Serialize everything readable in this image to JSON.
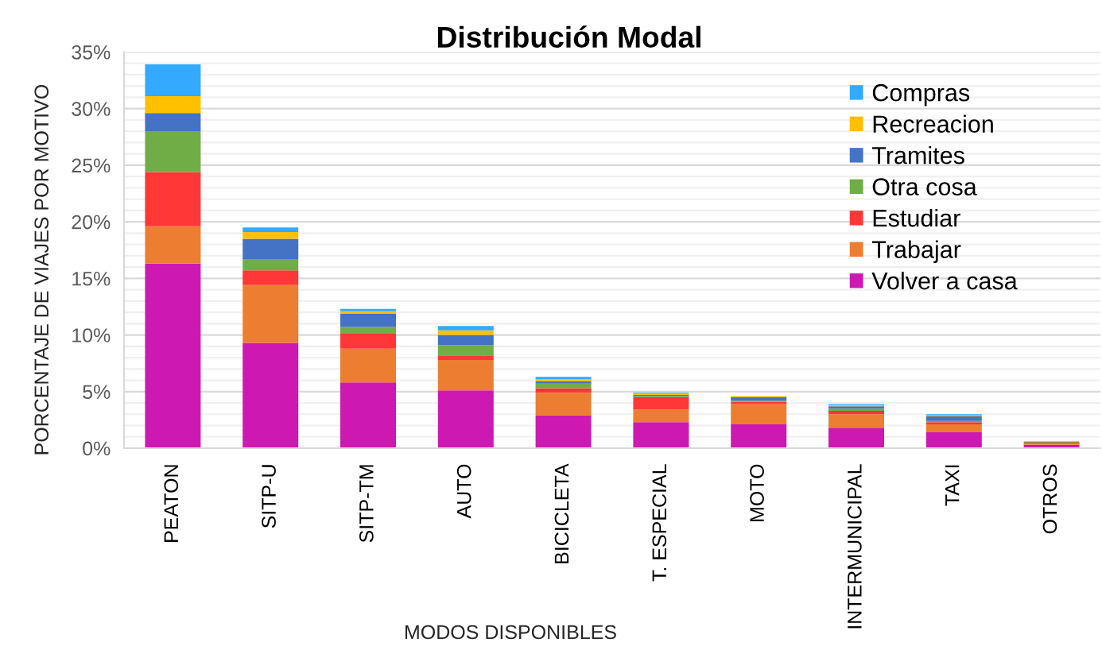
{
  "chart_data": {
    "type": "bar",
    "title": "Distribución Modal",
    "xlabel": "MODOS DISPONIBLES",
    "ylabel": "PORCENTAJE DE VIAJES POR MOTIVO",
    "categories": [
      "PEATON",
      "SITP-U",
      "SITP-TM",
      "AUTO",
      "BICICLETA",
      "T. ESPECIAL",
      "MOTO",
      "INTERMUNICIPAL",
      "TAXI",
      "OTROS"
    ],
    "stacked": true,
    "series": [
      {
        "name": "Volver a casa",
        "color": "#cd19b1",
        "values": [
          16.3,
          9.3,
          5.8,
          5.1,
          2.9,
          2.3,
          2.1,
          1.8,
          1.4,
          0.3
        ]
      },
      {
        "name": "Trabajar",
        "color": "#ed7d31",
        "values": [
          3.3,
          5.1,
          3.0,
          2.7,
          2.0,
          1.1,
          1.8,
          1.2,
          0.7,
          0.1
        ]
      },
      {
        "name": "Estudiar",
        "color": "#ff3737",
        "values": [
          4.8,
          1.3,
          1.3,
          0.4,
          0.4,
          1.1,
          0.2,
          0.3,
          0.2,
          0.1
        ]
      },
      {
        "name": "Otra cosa",
        "color": "#70ad47",
        "values": [
          3.6,
          1.0,
          0.6,
          0.9,
          0.4,
          0.1,
          0.1,
          0.2,
          0.1,
          0.1
        ]
      },
      {
        "name": "Tramites",
        "color": "#4472c4",
        "values": [
          1.6,
          1.8,
          1.2,
          0.9,
          0.2,
          0.1,
          0.3,
          0.2,
          0.4,
          0.0
        ]
      },
      {
        "name": "Recreacion",
        "color": "#ffc000",
        "values": [
          1.5,
          0.6,
          0.2,
          0.4,
          0.2,
          0.1,
          0.1,
          0.1,
          0.1,
          0.0
        ]
      },
      {
        "name": "Compras",
        "color": "#33aaff",
        "values": [
          2.8,
          0.4,
          0.2,
          0.4,
          0.2,
          0.1,
          0.0,
          0.1,
          0.1,
          0.0
        ]
      }
    ],
    "ylim": [
      0,
      35
    ],
    "yticks": [
      {
        "value": 0,
        "label": "0%"
      },
      {
        "value": 1,
        "label": null
      },
      {
        "value": 2,
        "label": null
      },
      {
        "value": 3,
        "label": null
      },
      {
        "value": 4,
        "label": null
      },
      {
        "value": 5,
        "label": "5%"
      },
      {
        "value": 6,
        "label": null
      },
      {
        "value": 7,
        "label": null
      },
      {
        "value": 8,
        "label": null
      },
      {
        "value": 9,
        "label": null
      },
      {
        "value": 10,
        "label": "10%"
      },
      {
        "value": 11,
        "label": null
      },
      {
        "value": 12,
        "label": null
      },
      {
        "value": 13,
        "label": null
      },
      {
        "value": 14,
        "label": null
      },
      {
        "value": 15,
        "label": "15%"
      },
      {
        "value": 16,
        "label": null
      },
      {
        "value": 17,
        "label": null
      },
      {
        "value": 18,
        "label": null
      },
      {
        "value": 19,
        "label": null
      },
      {
        "value": 20,
        "label": "20%"
      },
      {
        "value": 21,
        "label": null
      },
      {
        "value": 22,
        "label": null
      },
      {
        "value": 23,
        "label": null
      },
      {
        "value": 24,
        "label": null
      },
      {
        "value": 25,
        "label": "25%"
      },
      {
        "value": 26,
        "label": null
      },
      {
        "value": 27,
        "label": null
      },
      {
        "value": 28,
        "label": null
      },
      {
        "value": 29,
        "label": null
      },
      {
        "value": 30,
        "label": "30%"
      },
      {
        "value": 31,
        "label": null
      },
      {
        "value": 32,
        "label": null
      },
      {
        "value": 33,
        "label": null
      },
      {
        "value": 34,
        "label": null
      },
      {
        "value": 35,
        "label": "35%"
      }
    ],
    "grid": "y",
    "legend": "top right"
  }
}
